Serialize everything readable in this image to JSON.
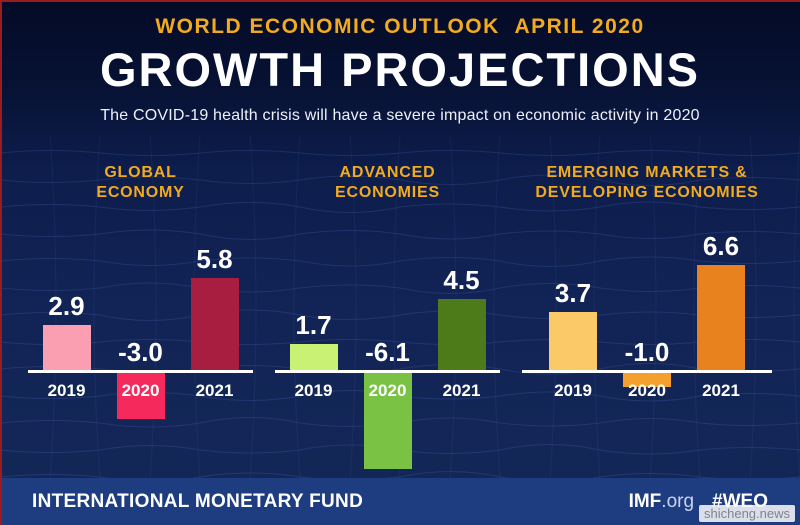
{
  "header": {
    "eyebrow": "WORLD ECONOMIC OUTLOOK  APRIL 2020",
    "title": "GROWTH PROJECTIONS",
    "subtitle": "The COVID-19 health crisis will have a severe impact on economic activity in 2020"
  },
  "chart_data": {
    "type": "bar",
    "categories": [
      "2019",
      "2020",
      "2021"
    ],
    "ylim": [
      -6.5,
      7
    ],
    "baseline_color": "#ffffff",
    "groups": [
      {
        "title_line1": "GLOBAL",
        "title_line2": "ECONOMY",
        "values": [
          2.9,
          -3.0,
          5.8
        ],
        "labels": [
          "2.9",
          "-3.0",
          "5.8"
        ],
        "colors": [
          "#f99fb1",
          "#f5295b",
          "#a81e41"
        ]
      },
      {
        "title_line1": "ADVANCED",
        "title_line2": "ECONOMIES",
        "values": [
          1.7,
          -6.1,
          4.5
        ],
        "labels": [
          "1.7",
          "-6.1",
          "4.5"
        ],
        "colors": [
          "#c9f173",
          "#79c243",
          "#4e7b1a"
        ]
      },
      {
        "title_line1": "EMERGING MARKETS &",
        "title_line2": "DEVELOPING ECONOMIES",
        "values": [
          3.7,
          -1.0,
          6.6
        ],
        "labels": [
          "3.7",
          "-1.0",
          "6.6"
        ],
        "colors": [
          "#fbc968",
          "#f5a02d",
          "#e8821e"
        ]
      }
    ]
  },
  "footer": {
    "org": "INTERNATIONAL MONETARY FUND",
    "site_bold": "IMF",
    "site_suffix": ".org",
    "hashtag": "#WEO"
  },
  "watermark": {
    "text": "shicheng.news"
  },
  "colors": {
    "background": "#0d1d4c",
    "footer_bg": "#1e3c80",
    "accent_gold": "#f2ab1f",
    "baseline": "#ffffff",
    "mesh_line": "#5d7fd6",
    "edge_red": "#9b1c20"
  }
}
